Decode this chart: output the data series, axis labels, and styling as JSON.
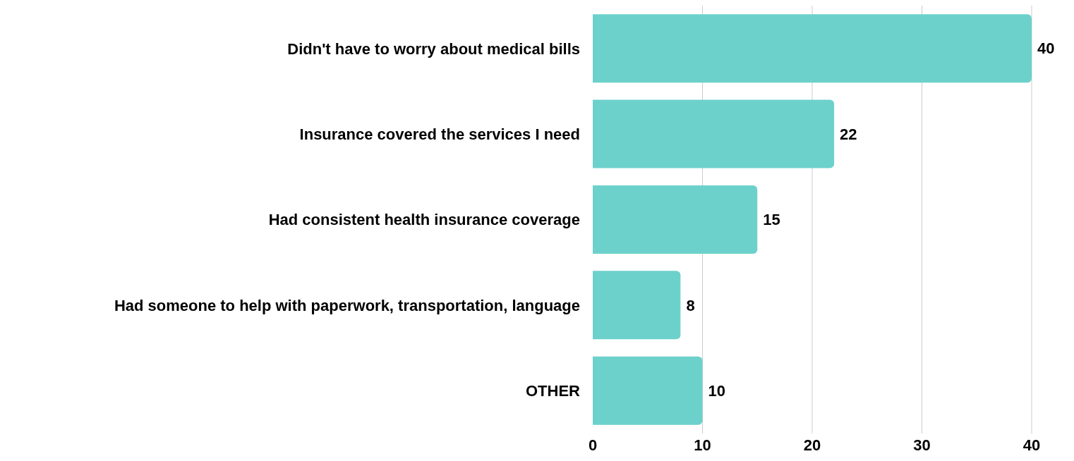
{
  "chart_data": {
    "type": "bar",
    "orientation": "horizontal",
    "categories": [
      "Didn't have to worry about medical bills",
      "Insurance covered the services I need",
      "Had consistent health insurance coverage",
      "Had someone to help with paperwork, transportation, language",
      "OTHER"
    ],
    "values": [
      40,
      22,
      15,
      8,
      10
    ],
    "color": "#6dd1cb",
    "xlim": [
      0,
      40
    ],
    "xticks": [
      0,
      10,
      20,
      30,
      40
    ],
    "grid": "x",
    "data_labels": true
  }
}
